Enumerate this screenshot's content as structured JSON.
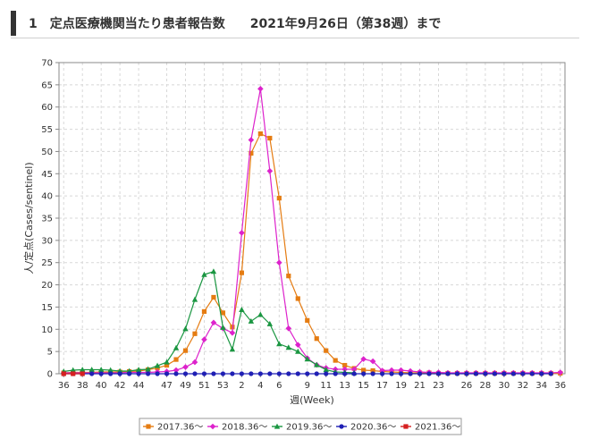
{
  "header": {
    "title": "1　定点医療機関当たり患者報告数　　2021年9月26日（第38週）まで"
  },
  "chart_data": {
    "type": "line",
    "xlabel": "週(Week)",
    "ylabel": "人/定点(Cases/sentinel)",
    "ylim": [
      0,
      70
    ],
    "yticks": [
      0,
      5,
      10,
      15,
      20,
      25,
      30,
      35,
      40,
      45,
      50,
      55,
      60,
      65,
      70
    ],
    "grid": true,
    "legend_position": "bottom",
    "weeks": [
      36,
      37,
      38,
      39,
      40,
      41,
      42,
      43,
      44,
      45,
      46,
      47,
      48,
      49,
      50,
      51,
      52,
      53,
      1,
      2,
      3,
      4,
      5,
      6,
      7,
      8,
      9,
      10,
      11,
      12,
      13,
      14,
      15,
      16,
      17,
      18,
      19,
      20,
      21,
      22,
      23,
      24,
      25,
      26,
      27,
      28,
      29,
      30,
      31,
      32,
      33,
      34,
      35,
      36
    ],
    "xtick_labels": [
      "36",
      "38",
      "40",
      "42",
      "44",
      "47",
      "49",
      "51",
      "53",
      "2",
      "4",
      "6",
      "9",
      "11",
      "13",
      "15",
      "17",
      "19",
      "21",
      "23",
      "26",
      "28",
      "30",
      "32",
      "34",
      "36"
    ],
    "series": [
      {
        "name": "2017.36～",
        "color": "#e57c12",
        "marker": "square",
        "values": [
          0.2,
          0.3,
          0.3,
          0.3,
          0.4,
          0.4,
          0.4,
          0.5,
          0.6,
          0.9,
          1.3,
          1.9,
          3.2,
          5.2,
          9,
          14,
          17.2,
          13.7,
          10.5,
          22.7,
          49.6,
          54,
          53,
          39.5,
          22,
          16.9,
          12,
          7.9,
          5.2,
          3,
          1.9,
          1.2,
          0.8,
          0.7,
          0.5,
          0.4,
          0.3,
          0.2,
          0.2,
          0.2,
          0.1,
          0.1,
          0.1,
          0.1,
          0.1,
          0.1,
          0.1,
          0.1,
          0.1,
          0.1,
          0.1,
          0.1,
          0.1,
          0.1
        ]
      },
      {
        "name": "2018.36～",
        "color": "#dd22cc",
        "marker": "diamond",
        "values": [
          0.2,
          0.2,
          0.2,
          0.2,
          0.2,
          0.2,
          0.2,
          0.3,
          0.3,
          0.3,
          0.4,
          0.5,
          0.8,
          1.5,
          2.6,
          7.7,
          11.5,
          10.2,
          9.2,
          31.7,
          52.6,
          64.1,
          45.6,
          25,
          10.2,
          6.5,
          3.5,
          2,
          1.3,
          1,
          1,
          1,
          3.3,
          2.8,
          0.7,
          0.8,
          0.8,
          0.6,
          0.4,
          0.3,
          0.3,
          0.2,
          0.2,
          0.2,
          0.2,
          0.2,
          0.2,
          0.2,
          0.2,
          0.2,
          0.2,
          0.2,
          0.2,
          0.3
        ]
      },
      {
        "name": "2019.36～",
        "color": "#1a9641",
        "marker": "triangle",
        "values": [
          0.5,
          0.8,
          0.9,
          0.9,
          0.9,
          0.8,
          0.6,
          0.6,
          0.9,
          1,
          1.8,
          2.6,
          5.8,
          10.1,
          16.7,
          22.3,
          23,
          10.4,
          5.5,
          14.4,
          11.8,
          13.3,
          11.2,
          6.7,
          5.9,
          5,
          3.3,
          2,
          0.9,
          0.4,
          0.3,
          0.2
        ]
      },
      {
        "name": "2020.36～",
        "color": "#1f1fb4",
        "marker": "circle",
        "values": [
          0,
          0,
          0,
          0,
          0,
          0,
          0,
          0,
          0,
          0,
          0,
          0,
          0,
          0,
          0,
          0,
          0,
          0,
          0,
          0,
          0,
          0,
          0,
          0,
          0,
          0,
          0,
          0,
          0,
          0,
          0,
          0,
          0,
          0,
          0,
          0,
          0,
          0,
          0,
          0,
          0,
          0,
          0,
          0,
          0,
          0,
          0,
          0,
          0,
          0,
          0,
          0,
          0
        ]
      },
      {
        "name": "2021.36～",
        "color": "#d62020",
        "marker": "square",
        "values": [
          0,
          0,
          0
        ]
      }
    ]
  }
}
